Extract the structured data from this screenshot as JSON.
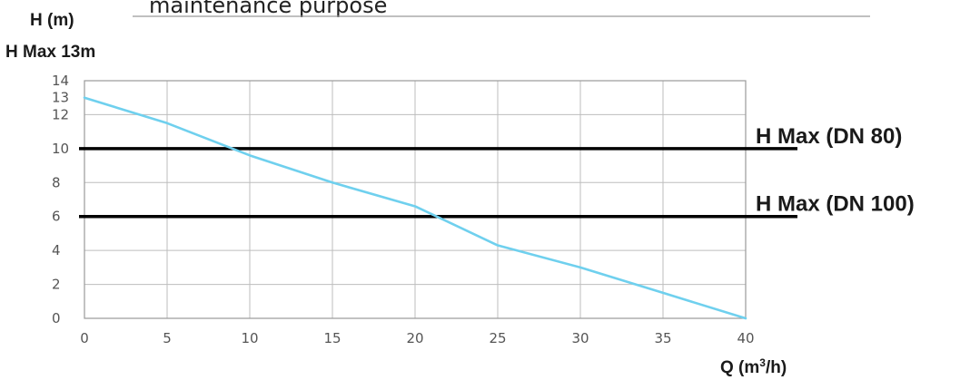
{
  "header_text": "maintenance purpose",
  "chart_data": {
    "type": "line",
    "ylabel": "H (m)",
    "ymax_label": "H Max 13m",
    "xlabel_main": "Q (m",
    "xlabel_sup": "3",
    "xlabel_end": "/h)",
    "xlim": [
      0,
      40
    ],
    "ylim": [
      0,
      14
    ],
    "grid": true,
    "x_ticks": [
      "0",
      "5",
      "10",
      "15",
      "20",
      "25",
      "30",
      "35",
      "40"
    ],
    "y_ticks": [
      "0",
      "2",
      "4",
      "6",
      "8",
      "10",
      "12",
      "13",
      "14"
    ],
    "series": [
      {
        "x": [
          0,
          5,
          10,
          15,
          20,
          25,
          30,
          35,
          40
        ],
        "y": [
          13,
          11.5,
          9.6,
          8.0,
          6.6,
          4.3,
          3.0,
          1.5,
          0
        ]
      }
    ],
    "reference_lines": [
      {
        "label": "H Max (DN 80)",
        "y": 10
      },
      {
        "label": "H Max (DN 100)",
        "y": 6
      }
    ],
    "colors": {
      "curve": "#6fd0ee",
      "reference": "#000000",
      "grid": "#bdbdbd",
      "frame": "#9a9a9a"
    }
  }
}
